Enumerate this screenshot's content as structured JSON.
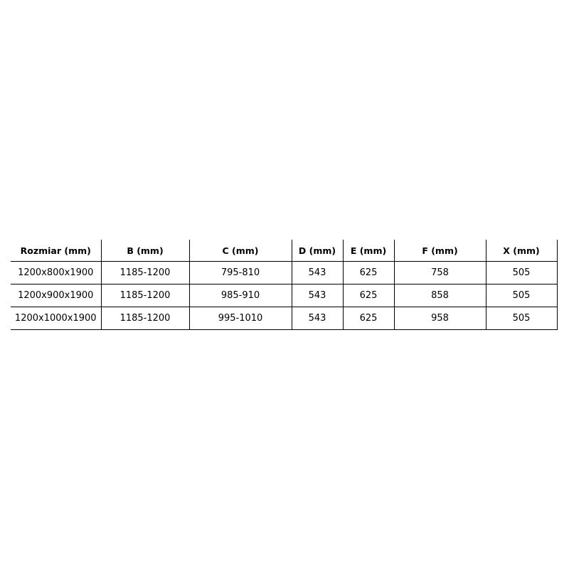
{
  "table": {
    "headers": [
      "Rozmiar (mm)",
      "B (mm)",
      "C (mm)",
      "D (mm)",
      "E (mm)",
      "F (mm)",
      "X (mm)"
    ],
    "rows": [
      [
        "1200x800x1900",
        "1185-1200",
        "795-810",
        "543",
        "625",
        "758",
        "505"
      ],
      [
        "1200x900x1900",
        "1185-1200",
        "985-910",
        "543",
        "625",
        "858",
        "505"
      ],
      [
        "1200x1000x1900",
        "1185-1200",
        "995-1010",
        "543",
        "625",
        "958",
        "505"
      ]
    ]
  }
}
